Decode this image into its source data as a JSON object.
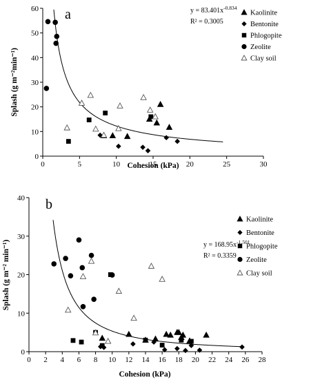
{
  "chart_data": [
    {
      "type": "scatter",
      "panel_label": "a",
      "xlabel": "Cohesion (kPa)",
      "ylabel": "Splash (g m⁻²min⁻¹)",
      "xlim": [
        0,
        30
      ],
      "ylim": [
        0,
        60
      ],
      "x_ticks": [
        "0",
        "5",
        "10",
        "15",
        "20",
        "25",
        "30"
      ],
      "y_ticks": [
        "0",
        "10",
        "20",
        "30",
        "40",
        "50",
        "60"
      ],
      "equation": "y = 83.401x",
      "equation_exp": "-0.834",
      "r2": "R² = 0.3005",
      "fit": {
        "a": 83.401,
        "b": -0.834,
        "x_from": 1.5,
        "x_to": 24.5
      },
      "legend_placement": "right",
      "series": [
        {
          "name": "Kaolinite",
          "marker": "triangle-filled",
          "x": [
            8.3,
            9.5,
            11.5,
            14.5,
            15.5,
            16.0,
            17.2
          ],
          "y": [
            8.3,
            8.3,
            8.0,
            15.0,
            13.5,
            21.0,
            11.7
          ]
        },
        {
          "name": "Bentonite",
          "marker": "diamond-filled",
          "x": [
            7.8,
            10.3,
            13.6,
            14.3,
            16.8,
            18.3
          ],
          "y": [
            8.5,
            4.0,
            3.6,
            2.2,
            7.5,
            6.0
          ]
        },
        {
          "name": "Phlogopite",
          "marker": "square-filled",
          "x": [
            3.5,
            6.3,
            8.5,
            14.7
          ],
          "y": [
            6.0,
            14.7,
            17.5,
            16.0
          ]
        },
        {
          "name": "Zeolite",
          "marker": "circle-filled",
          "x": [
            0.5,
            0.7,
            1.7,
            1.9,
            1.8
          ],
          "y": [
            27.5,
            54.6,
            54.3,
            48.6,
            45.8
          ]
        },
        {
          "name": "Clay soil",
          "marker": "triangle-open",
          "x": [
            3.3,
            5.3,
            6.5,
            7.2,
            8.3,
            10.3,
            10.5,
            13.7,
            14.6,
            15.3
          ],
          "y": [
            11.5,
            21.5,
            24.7,
            11.0,
            8.5,
            11.2,
            20.4,
            23.8,
            18.7,
            16.0
          ]
        }
      ]
    },
    {
      "type": "scatter",
      "panel_label": "b",
      "xlabel": "Cohesion (kPa)",
      "ylabel": "Splash (g m⁻² min⁻¹)",
      "xlim": [
        0,
        28
      ],
      "ylim": [
        0,
        40
      ],
      "x_ticks": [
        "0",
        "2",
        "4",
        "6",
        "8",
        "10",
        "12",
        "14",
        "16",
        "18",
        "20",
        "22",
        "24",
        "26",
        "28"
      ],
      "y_ticks": [
        "0",
        "10",
        "20",
        "30",
        "40"
      ],
      "equation": "y = 168.95x",
      "equation_exp": "-1.501",
      "r2": "R² = 0.3359",
      "fit": {
        "a": 168.95,
        "b": -1.501,
        "x_from": 2.9,
        "x_to": 25.5
      },
      "legend_placement": "top-right",
      "series": [
        {
          "name": "Kaolinite",
          "marker": "triangle-filled",
          "x": [
            8.8,
            12.0,
            14.0,
            15.2,
            16.5,
            17.0,
            17.8,
            18.0,
            18.3,
            18.5,
            19.3,
            21.3
          ],
          "y": [
            3.5,
            4.5,
            3.0,
            3.3,
            4.5,
            4.3,
            5.0,
            5.0,
            3.7,
            4.3,
            2.8,
            4.3
          ]
        },
        {
          "name": "Bentonite",
          "marker": "diamond-filled",
          "x": [
            8.6,
            9.0,
            12.5,
            15.0,
            16.3,
            17.8,
            18.8,
            19.5,
            20.5,
            25.6
          ],
          "y": [
            1.3,
            1.1,
            2.0,
            2.5,
            0.5,
            0.8,
            0.3,
            1.6,
            0.4,
            1.2
          ]
        },
        {
          "name": "Phlogopite",
          "marker": "square-filled",
          "x": [
            5.3,
            6.3,
            8.0,
            8.8,
            9.8,
            14.0,
            16.0,
            18.3,
            19.5
          ],
          "y": [
            2.9,
            2.5,
            5.0,
            1.6,
            20.0,
            3.0,
            1.7,
            3.0,
            2.7
          ]
        },
        {
          "name": "Zeolite",
          "marker": "circle-filled",
          "x": [
            3.0,
            4.4,
            5.0,
            6.0,
            6.4,
            6.5,
            7.5,
            7.8,
            10.0
          ],
          "y": [
            22.8,
            24.2,
            19.7,
            29.0,
            21.8,
            11.7,
            25.0,
            13.6,
            19.9
          ]
        },
        {
          "name": "Clay soil",
          "marker": "triangle-open",
          "x": [
            4.7,
            6.5,
            7.5,
            8.0,
            9.5,
            10.8,
            12.6,
            14.7,
            16.0
          ],
          "y": [
            10.8,
            19.5,
            23.5,
            4.9,
            2.7,
            15.7,
            8.7,
            22.2,
            18.8
          ]
        }
      ]
    }
  ]
}
